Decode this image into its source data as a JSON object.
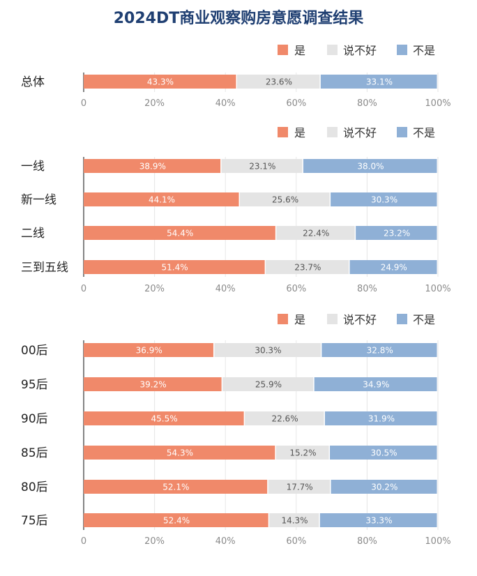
{
  "title": "2024DT商业观察购房意愿调查结果",
  "colors": {
    "yes": "#f0896a",
    "unsure": "#e4e4e4",
    "no": "#8fb0d6"
  },
  "chart_data": [
    {
      "type": "bar",
      "stacked": true,
      "orientation": "horizontal",
      "xlim": [
        0,
        100
      ],
      "x_ticks": [
        "0",
        "20%",
        "40%",
        "60%",
        "80%",
        "100%"
      ],
      "legend": [
        "是",
        "说不好",
        "不是"
      ],
      "legend_position": "top-right",
      "categories": [
        "总体"
      ],
      "series": [
        {
          "name": "是",
          "values": [
            43.3
          ],
          "labels": [
            "43.3%"
          ]
        },
        {
          "name": "说不好",
          "values": [
            23.6
          ],
          "labels": [
            "23.6%"
          ]
        },
        {
          "name": "不是",
          "values": [
            33.1
          ],
          "labels": [
            "33.1%"
          ]
        }
      ]
    },
    {
      "type": "bar",
      "stacked": true,
      "orientation": "horizontal",
      "xlim": [
        0,
        100
      ],
      "x_ticks": [
        "0",
        "20%",
        "40%",
        "60%",
        "80%",
        "100%"
      ],
      "legend": [
        "是",
        "说不好",
        "不是"
      ],
      "legend_position": "top-right",
      "categories": [
        "一线",
        "新一线",
        "二线",
        "三到五线"
      ],
      "series": [
        {
          "name": "是",
          "values": [
            38.9,
            44.1,
            54.4,
            51.4
          ],
          "labels": [
            "38.9%",
            "44.1%",
            "54.4%",
            "51.4%"
          ]
        },
        {
          "name": "说不好",
          "values": [
            23.1,
            25.6,
            22.4,
            23.7
          ],
          "labels": [
            "23.1%",
            "25.6%",
            "22.4%",
            "23.7%"
          ]
        },
        {
          "name": "不是",
          "values": [
            38.0,
            30.3,
            23.2,
            24.9
          ],
          "labels": [
            "38.0%",
            "30.3%",
            "23.2%",
            "24.9%"
          ]
        }
      ]
    },
    {
      "type": "bar",
      "stacked": true,
      "orientation": "horizontal",
      "xlim": [
        0,
        100
      ],
      "x_ticks": [
        "0",
        "20%",
        "40%",
        "60%",
        "80%",
        "100%"
      ],
      "legend": [
        "是",
        "说不好",
        "不是"
      ],
      "legend_position": "top-right",
      "categories": [
        "00后",
        "95后",
        "90后",
        "85后",
        "80后",
        "75后"
      ],
      "series": [
        {
          "name": "是",
          "values": [
            36.9,
            39.2,
            45.5,
            54.3,
            52.1,
            52.4
          ],
          "labels": [
            "36.9%",
            "39.2%",
            "45.5%",
            "54.3%",
            "52.1%",
            "52.4%"
          ]
        },
        {
          "name": "说不好",
          "values": [
            30.3,
            25.9,
            22.6,
            15.2,
            17.7,
            14.3
          ],
          "labels": [
            "30.3%",
            "25.9%",
            "22.6%",
            "15.2%",
            "17.7%",
            "14.3%"
          ]
        },
        {
          "name": "不是",
          "values": [
            32.8,
            34.9,
            31.9,
            30.5,
            30.2,
            33.3
          ],
          "labels": [
            "32.8%",
            "34.9%",
            "31.9%",
            "30.5%",
            "30.2%",
            "33.3%"
          ]
        }
      ]
    }
  ]
}
